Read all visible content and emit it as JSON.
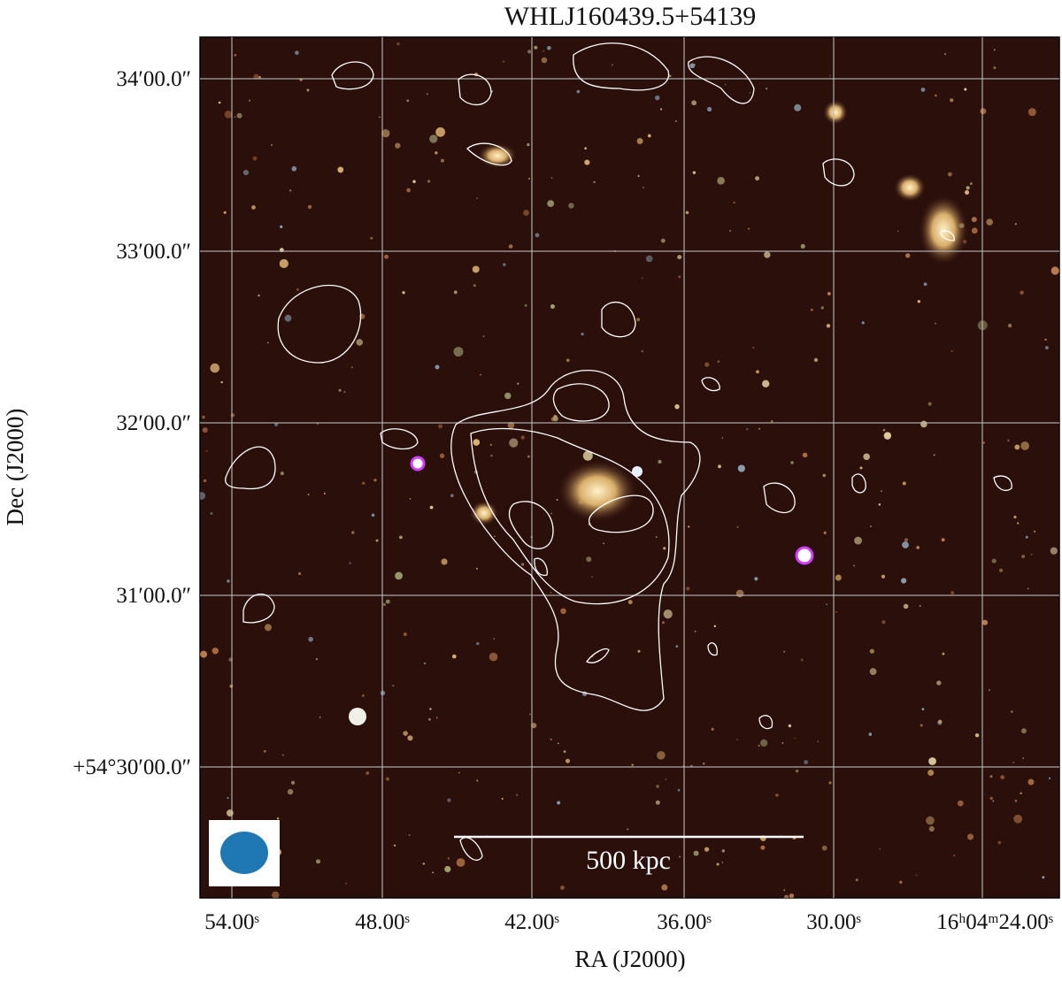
{
  "title": "WHLJ160439.5+54139",
  "x_label": "RA (J2000)",
  "y_label": "Dec (J2000)",
  "x_ticks": [
    "54.00ˢ",
    "48.00ˢ",
    "42.00ˢ",
    "36.00ˢ",
    "30.00ˢ",
    "16ʰ04ᵐ24.00ˢ"
  ],
  "y_ticks": [
    "34′00.0″",
    "33′00.0″",
    "32′00.0″",
    "31′00.0″",
    "+54°30′00.0″"
  ],
  "scale_bar": "500 kpc"
}
